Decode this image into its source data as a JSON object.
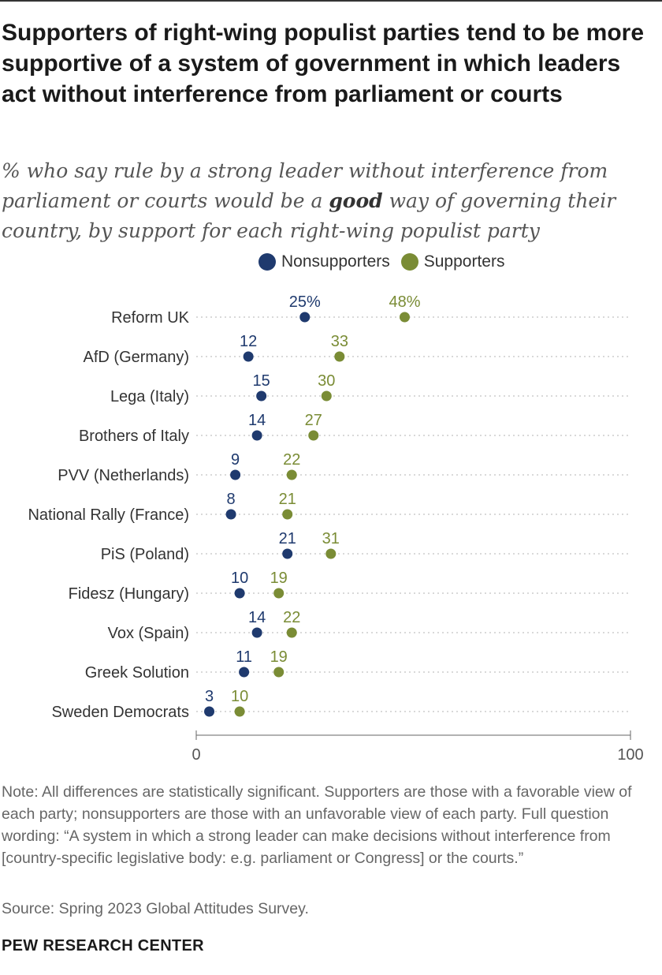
{
  "title": "Supporters of right-wing populist parties tend to be more supportive of a system of government in which leaders act without interference from parliament or courts",
  "subtitle": {
    "before": "% who say rule by a strong leader without interference from parliament or courts would be a ",
    "emphasis": "good",
    "after": " way of governing their country, by support for each right-wing populist party"
  },
  "note": "Note: All differences are statistically significant. Supporters are those with a favorable view of each party; nonsupporters are those with an unfavorable view of each party. Full question wording: “A system in which a strong leader can make decisions without interference from [country-specific legislative body: e.g. parliament or Congress] or the courts.”",
  "source": "Source: Spring 2023 Global Attitudes Survey.",
  "brand": "PEW RESEARCH CENTER",
  "chart_data": {
    "type": "dot",
    "categories": [
      "Reform UK",
      "AfD (Germany)",
      "Lega (Italy)",
      "Brothers of Italy",
      "PVV (Netherlands)",
      "National Rally (France)",
      "PiS (Poland)",
      "Fidesz (Hungary)",
      "Vox (Spain)",
      "Greek Solution",
      "Sweden Democrats"
    ],
    "series": [
      {
        "name": "Nonsupporters",
        "color": "#1f3a6e",
        "values": [
          25,
          12,
          15,
          14,
          9,
          8,
          21,
          10,
          14,
          11,
          3
        ]
      },
      {
        "name": "Supporters",
        "color": "#7a8c35",
        "values": [
          48,
          33,
          30,
          27,
          22,
          21,
          31,
          19,
          22,
          19,
          10
        ]
      }
    ],
    "first_label_suffix": "%",
    "xlim": [
      0,
      100
    ],
    "xticks": [
      "0",
      "100"
    ],
    "grid": "dotted row guides",
    "legend": "top"
  }
}
